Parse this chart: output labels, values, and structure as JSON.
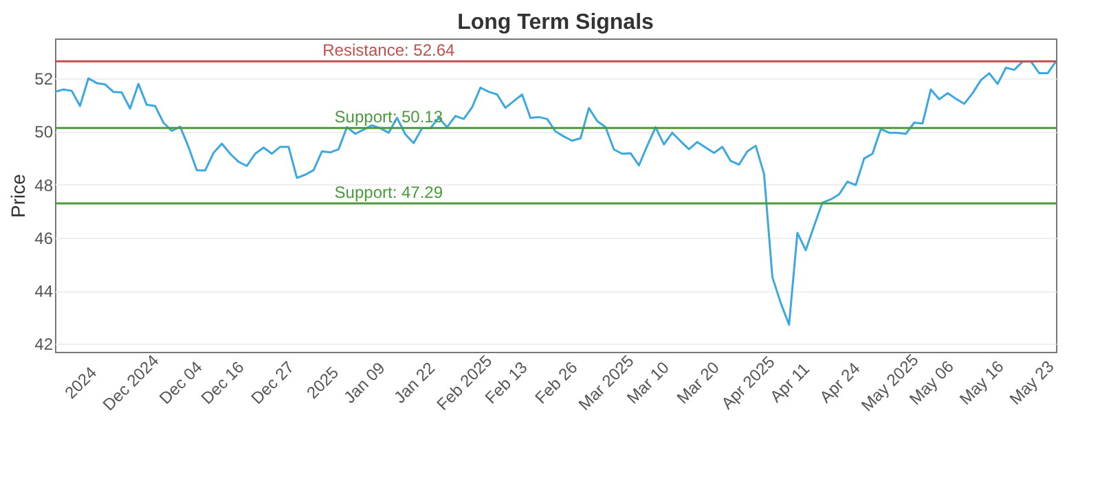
{
  "chart_data": {
    "type": "line",
    "title": "Long Term Signals",
    "ylabel": "Price",
    "categories": [
      null,
      null,
      null,
      "2024",
      null,
      null,
      null,
      null,
      null,
      "Dec 2024",
      null,
      null,
      null,
      null,
      null,
      "Dec 04",
      null,
      null,
      null,
      null,
      "Dec 16",
      null,
      null,
      null,
      null,
      null,
      "Dec 27",
      null,
      null,
      null,
      null,
      null,
      "2025",
      null,
      null,
      null,
      null,
      "Jan 09",
      null,
      null,
      null,
      null,
      null,
      "Jan 22",
      null,
      null,
      null,
      null,
      null,
      "Feb 2025",
      null,
      null,
      null,
      null,
      "Feb 13",
      null,
      null,
      null,
      null,
      null,
      "Feb 26",
      null,
      null,
      null,
      null,
      null,
      "Mar 2025",
      null,
      null,
      null,
      null,
      "Mar 10",
      null,
      null,
      null,
      null,
      null,
      "Mar 20",
      null,
      null,
      null,
      null,
      null,
      "Apr 2025",
      null,
      null,
      null,
      null,
      "Apr 11",
      null,
      null,
      null,
      null,
      null,
      "Apr 24",
      null,
      null,
      null,
      null,
      null,
      "May 2025",
      null,
      null,
      null,
      null,
      "May 06",
      null,
      null,
      null,
      null,
      null,
      "May 16",
      null,
      null,
      null,
      null,
      null,
      "May 23",
      null,
      null,
      null
    ],
    "series": [
      {
        "color": "#3ba9e0",
        "values": [
          51.49,
          51.58,
          51.53,
          50.96,
          52.0,
          51.82,
          51.77,
          51.49,
          51.47,
          50.86,
          51.79,
          51.0,
          50.96,
          50.33,
          50.02,
          50.18,
          49.42,
          48.54,
          48.53,
          49.19,
          49.54,
          49.16,
          48.86,
          48.7,
          49.16,
          49.39,
          49.16,
          49.42,
          49.42,
          48.25,
          48.37,
          48.54,
          49.25,
          49.21,
          49.33,
          50.16,
          49.91,
          50.07,
          50.23,
          50.12,
          49.95,
          50.51,
          49.89,
          49.56,
          50.12,
          50.12,
          50.51,
          50.16,
          50.58,
          50.47,
          50.91,
          51.65,
          51.49,
          51.39,
          50.89,
          51.14,
          51.39,
          50.51,
          50.54,
          50.47,
          50.0,
          49.81,
          49.65,
          49.74,
          50.88,
          50.39,
          50.16,
          49.32,
          49.16,
          49.18,
          48.72,
          49.46,
          50.16,
          49.51,
          49.95,
          49.63,
          49.33,
          49.6,
          49.39,
          49.19,
          49.42,
          48.89,
          48.75,
          49.25,
          49.46,
          48.4,
          44.51,
          43.54,
          42.72,
          46.18,
          45.53,
          46.44,
          47.32,
          47.44,
          47.63,
          48.11,
          47.98,
          48.98,
          49.16,
          50.09,
          49.95,
          49.95,
          49.91,
          50.33,
          50.3,
          51.58,
          51.21,
          51.44,
          51.23,
          51.04,
          51.44,
          51.93,
          52.19,
          51.79,
          52.4,
          52.32,
          52.63,
          52.63,
          52.19,
          52.19,
          52.64
        ]
      }
    ],
    "ylim": [
      41.7,
      53.5
    ],
    "yticks": [
      42,
      44,
      46,
      48,
      50,
      52
    ],
    "grid": "y",
    "ref_lines": [
      {
        "axis": "y",
        "value": 52.64,
        "label": "Resistance: 52.64",
        "color": "#c0504d"
      },
      {
        "axis": "y",
        "value": 50.13,
        "label": "Support: 50.13",
        "color": "#4a9a3a"
      },
      {
        "axis": "y",
        "value": 47.29,
        "label": "Support: 47.29",
        "color": "#4a9a3a"
      }
    ]
  }
}
